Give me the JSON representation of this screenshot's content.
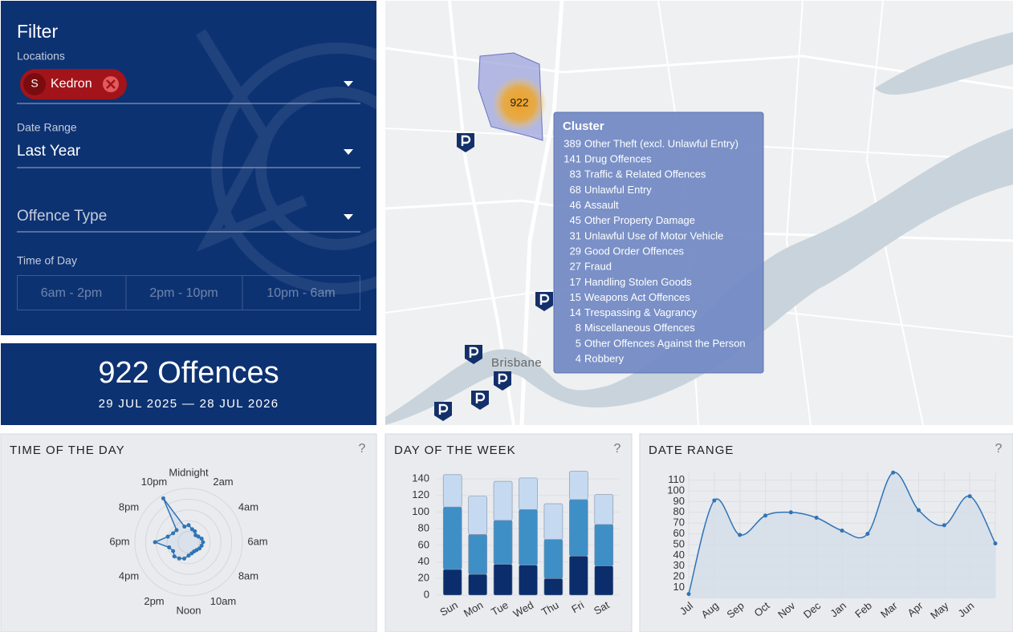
{
  "filter": {
    "title": "Filter",
    "locations_label": "Locations",
    "location": {
      "initial": "S",
      "name": "Kedron"
    },
    "date_range_label": "Date Range",
    "date_range": "Last Year",
    "offence_type_label": "Offence Type",
    "time_of_day_label": "Time of Day",
    "time_of_day_options": [
      "6am - 2pm",
      "2pm - 10pm",
      "10pm - 6am"
    ]
  },
  "summary": {
    "title": "922 Offences",
    "date_span": "29 JUL 2025 — 28 JUL 2026"
  },
  "map": {
    "cluster_count": 922,
    "place_label": "Brisbane",
    "tooltip": {
      "title": "Cluster",
      "items": [
        {
          "count": 389,
          "label": "Other Theft (excl. Unlawful Entry)"
        },
        {
          "count": 141,
          "label": "Drug Offences"
        },
        {
          "count": 83,
          "label": "Traffic & Related Offences"
        },
        {
          "count": 68,
          "label": "Unlawful Entry"
        },
        {
          "count": 46,
          "label": "Assault"
        },
        {
          "count": 45,
          "label": "Other Property Damage"
        },
        {
          "count": 31,
          "label": "Unlawful Use of Motor Vehicle"
        },
        {
          "count": 29,
          "label": "Good Order Offences"
        },
        {
          "count": 27,
          "label": "Fraud"
        },
        {
          "count": 17,
          "label": "Handling Stolen Goods"
        },
        {
          "count": 15,
          "label": "Weapons Act Offences"
        },
        {
          "count": 14,
          "label": "Trespassing & Vagrancy"
        },
        {
          "count": 8,
          "label": "Miscellaneous Offences"
        },
        {
          "count": 5,
          "label": "Other Offences Against the Person"
        },
        {
          "count": 4,
          "label": "Robbery"
        }
      ]
    }
  },
  "chart_data": [
    {
      "type": "radar",
      "title": "TIME OF THE DAY",
      "help": "?",
      "categories": [
        "Midnight",
        null,
        "2am",
        null,
        "4am",
        null,
        "6am",
        null,
        "8am",
        null,
        "10am",
        null,
        "Noon",
        null,
        "2pm",
        null,
        "4pm",
        null,
        "6pm",
        null,
        "8pm",
        null,
        "10pm",
        null
      ],
      "values": [
        38,
        30,
        28,
        22,
        25,
        30,
        32,
        30,
        28,
        25,
        24,
        26,
        30,
        38,
        42,
        45,
        40,
        45,
        75,
        48,
        40,
        38,
        113,
        36
      ],
      "color": "#2f74b5",
      "rlim": [
        0,
        120
      ],
      "rticks": [
        24,
        48,
        72,
        96,
        120
      ]
    },
    {
      "type": "bar",
      "stacked": true,
      "title": "DAY OF THE WEEK",
      "help": "?",
      "categories": [
        "Sun",
        "Mon",
        "Tue",
        "Wed",
        "Thu",
        "Fri",
        "Sat"
      ],
      "series": [
        {
          "color": "#0b2d6b",
          "values": [
            31,
            25,
            37,
            36,
            20,
            47,
            35
          ]
        },
        {
          "color": "#3f8fc7",
          "values": [
            75,
            48,
            53,
            67,
            47,
            68,
            50
          ]
        },
        {
          "color": "#c5daf0",
          "values": [
            39,
            46,
            47,
            38,
            43,
            34,
            36
          ]
        }
      ],
      "ylim": [
        0,
        150
      ],
      "yticks": [
        0,
        20,
        40,
        60,
        80,
        100,
        120,
        140
      ],
      "grid": true
    },
    {
      "type": "line",
      "title": "DATE RANGE",
      "help": "?",
      "categories": [
        "Jul",
        "Aug",
        "Sep",
        "Oct",
        "Nov",
        "Dec",
        "Jan",
        "Feb",
        "Mar",
        "Apr",
        "May",
        "Jun",
        null
      ],
      "values": [
        4,
        91,
        59,
        77,
        80,
        75,
        63,
        60,
        117,
        82,
        68,
        95,
        51
      ],
      "color": "#2f74b5",
      "fill": "#d3dde8",
      "ylim": [
        0,
        118
      ],
      "yticks": [
        10,
        20,
        30,
        40,
        50,
        60,
        70,
        80,
        90,
        100,
        110
      ],
      "grid": true
    }
  ]
}
